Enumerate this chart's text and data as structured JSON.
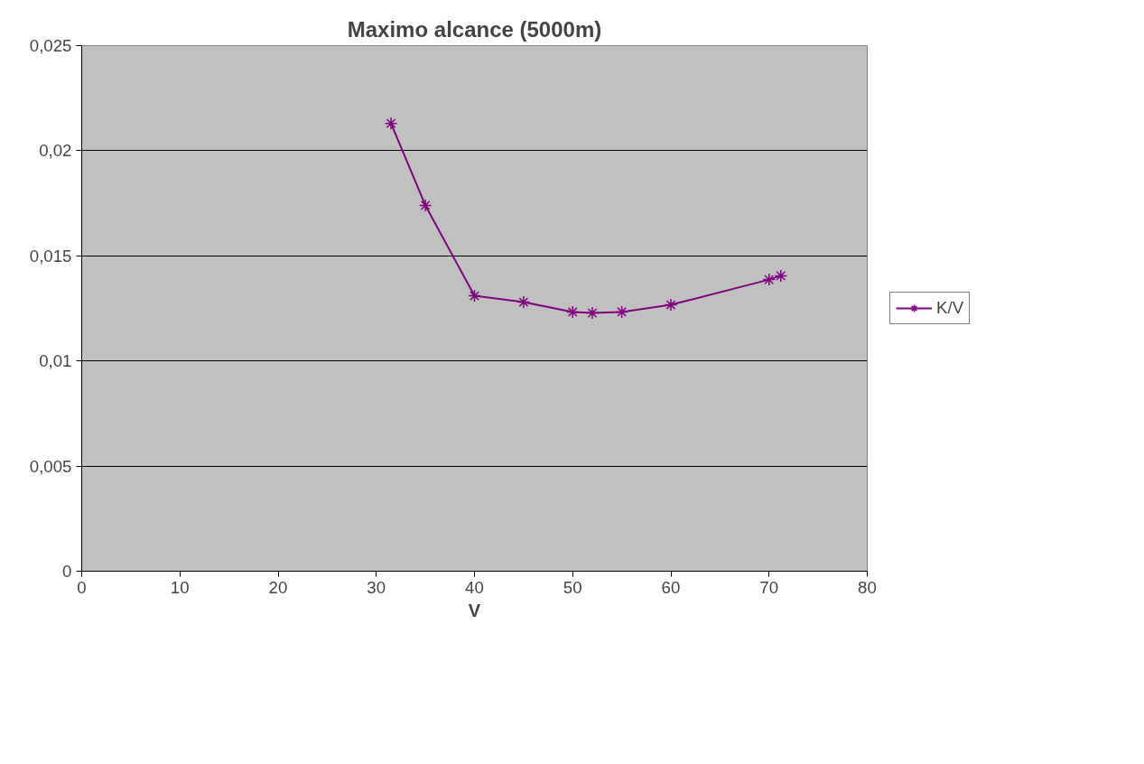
{
  "chart_data": {
    "type": "line",
    "title": "Maximo alcance (5000m)",
    "xlabel": "V",
    "x": [
      31.5,
      35,
      40,
      45,
      50,
      52,
      55,
      60,
      70,
      71.2
    ],
    "series": [
      {
        "name": "K/V",
        "color": "#800080",
        "values": [
          0.0213,
          0.0174,
          0.0131,
          0.0128,
          0.01233,
          0.01228,
          0.01233,
          0.01267,
          0.01387,
          0.01405
        ]
      }
    ],
    "xlim": [
      0,
      80
    ],
    "xticks": [
      0,
      10,
      20,
      30,
      40,
      50,
      60,
      70,
      80
    ],
    "ylim": [
      0,
      0.025
    ],
    "yticks": [
      {
        "value": 0,
        "label": "0"
      },
      {
        "value": 0.005,
        "label": "0,005"
      },
      {
        "value": 0.01,
        "label": "0,01"
      },
      {
        "value": 0.015,
        "label": "0,015"
      },
      {
        "value": 0.02,
        "label": "0,02"
      },
      {
        "value": 0.025,
        "label": "0,025"
      }
    ],
    "grid": "y",
    "legend": "right",
    "marker": "cross",
    "line_style": "solid"
  }
}
